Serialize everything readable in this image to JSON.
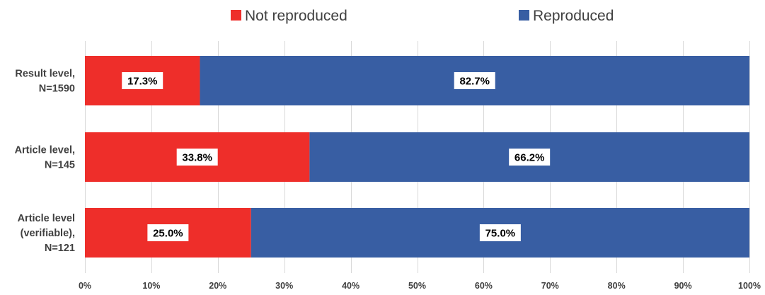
{
  "chart_data": {
    "type": "bar",
    "orientation": "horizontal",
    "stacked": true,
    "title": "",
    "xlabel": "",
    "ylabel": "",
    "xlim": [
      0,
      100
    ],
    "x_ticks": [
      "0%",
      "10%",
      "20%",
      "30%",
      "40%",
      "50%",
      "60%",
      "70%",
      "80%",
      "90%",
      "100%"
    ],
    "grid": true,
    "legend_position": "top",
    "categories": [
      [
        "Result level,",
        "N=1590"
      ],
      [
        "Article level,",
        "N=145"
      ],
      [
        "Article level",
        "(verifiable),",
        "N=121"
      ]
    ],
    "series": [
      {
        "name": "Not reproduced",
        "color": "#ee2e2a",
        "values": [
          17.3,
          33.8,
          25.0
        ],
        "labels": [
          "17.3%",
          "33.8%",
          "25.0%"
        ]
      },
      {
        "name": "Reproduced",
        "color": "#385ea3",
        "values": [
          82.7,
          66.2,
          75.0
        ],
        "labels": [
          "82.7%",
          "66.2%",
          "75.0%"
        ]
      }
    ]
  }
}
